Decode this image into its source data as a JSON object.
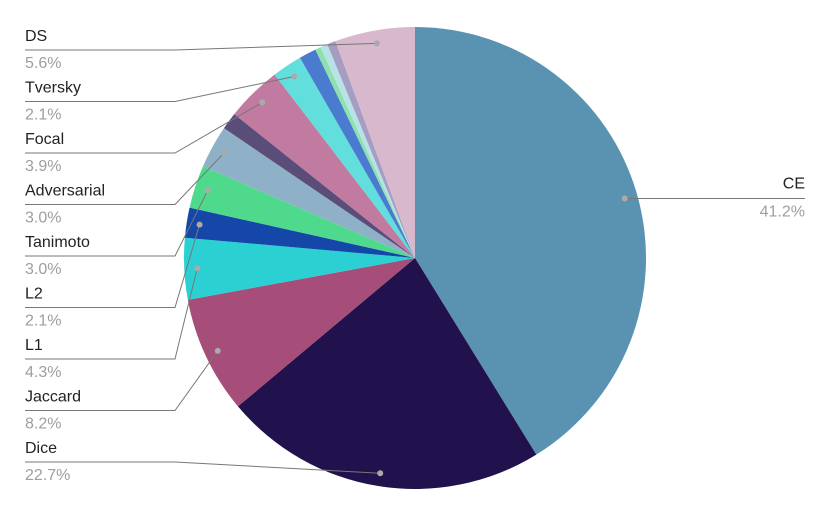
{
  "chart_data": {
    "type": "pie",
    "categories": [
      "CE",
      "Dice",
      "Jaccard",
      "L1",
      "L2",
      "Tanimoto",
      "Adversarial",
      null,
      "Focal",
      "Tversky",
      null,
      null,
      null,
      null,
      "DS"
    ],
    "values": [
      41.2,
      22.7,
      8.2,
      4.3,
      2.1,
      3.0,
      3.0,
      1.2,
      3.9,
      2.1,
      1.2,
      0.4,
      0.5,
      0.6,
      5.6
    ],
    "value_labels": [
      "41.2%",
      "22.7%",
      "8.2%",
      "4.3%",
      "2.1%",
      "3.0%",
      "3.0%",
      null,
      "3.9%",
      "2.1%",
      null,
      null,
      null,
      null,
      "5.6%"
    ],
    "colors": [
      "#5a93b1",
      "#21124d",
      "#a64d79",
      "#2bd0d2",
      "#1447a8",
      "#4ed98c",
      "#8fb1c7",
      "#5b4d79",
      "#c27ba0",
      "#62dedd",
      "#4a7bcf",
      "#8ee0ae",
      "#b7e3e8",
      "#a59ec2",
      "#d7b8cd"
    ]
  }
}
